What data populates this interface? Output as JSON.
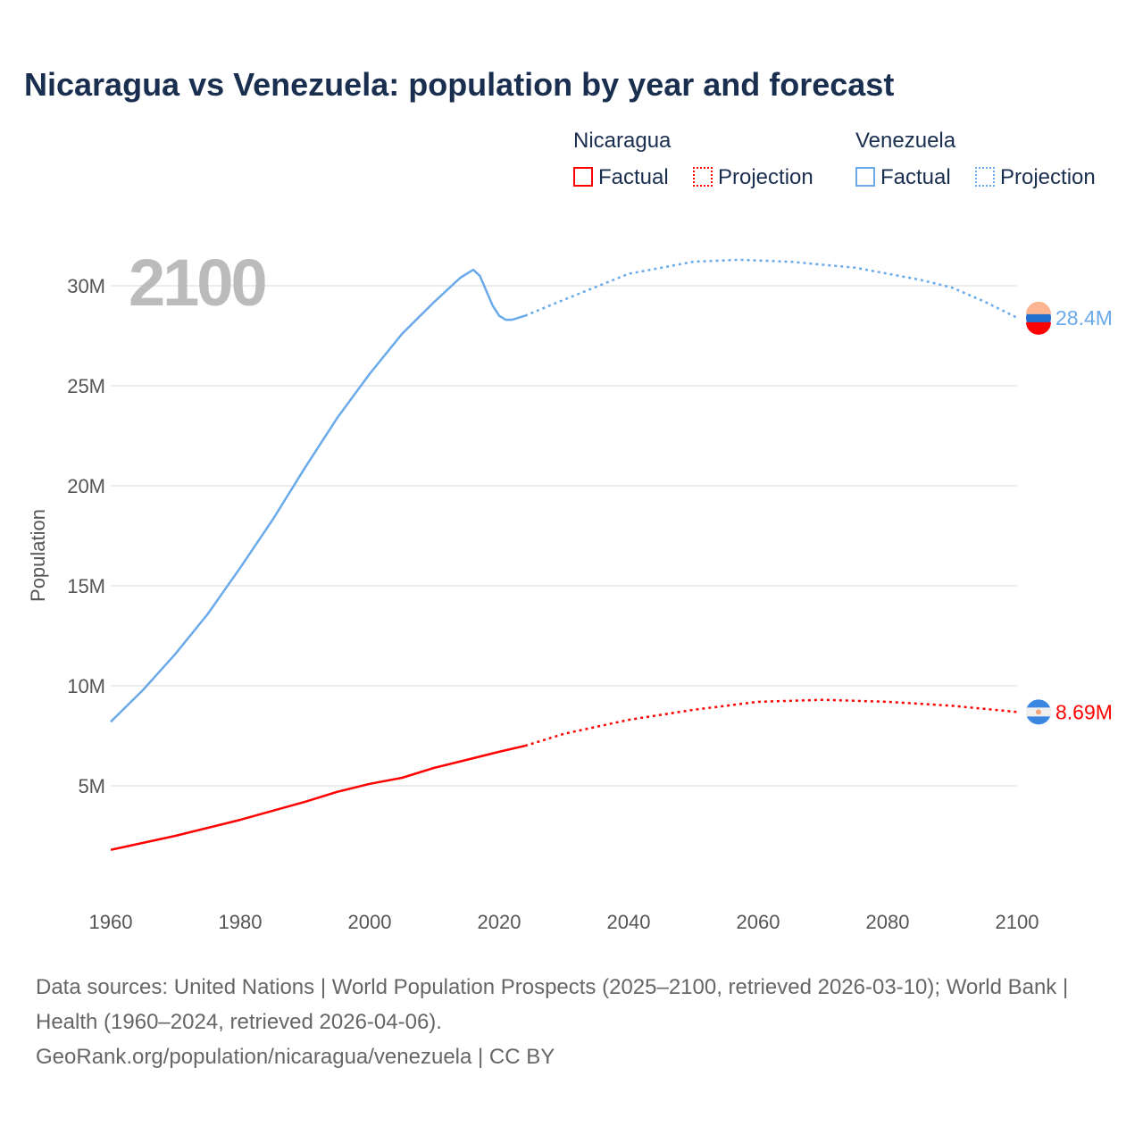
{
  "title": "Nicaragua vs Venezuela: population by year and forecast",
  "legend": {
    "groups": [
      {
        "name": "Nicaragua",
        "factual": "Factual",
        "projection": "Projection",
        "color": "#ff0000"
      },
      {
        "name": "Venezuela",
        "factual": "Factual",
        "projection": "Projection",
        "color": "#6aaaea"
      }
    ]
  },
  "year_watermark": "2100",
  "footer": {
    "sources": "Data sources: United Nations | World Population Prospects (2025–2100, retrieved 2026-03-10); World Bank | Health (1960–2024, retrieved 2026-04-06).",
    "link": "GeoRank.org/population/nicaragua/venezuela | CC BY"
  },
  "chart_data": {
    "type": "line",
    "title": "Nicaragua vs Venezuela: population by year and forecast",
    "xlabel": "",
    "ylabel": "Population",
    "xlim": [
      1960,
      2100
    ],
    "ylim": [
      0,
      32
    ],
    "xticks": [
      1960,
      1980,
      2000,
      2020,
      2040,
      2060,
      2080,
      2100
    ],
    "yticks": [
      5,
      10,
      15,
      20,
      25,
      30
    ],
    "ytick_labels": [
      "5M",
      "10M",
      "15M",
      "20M",
      "25M",
      "30M"
    ],
    "xtick_labels": [
      "1960",
      "1980",
      "2000",
      "2020",
      "2040",
      "2060",
      "2080",
      "2100"
    ],
    "grid": true,
    "legend_position": "top-right",
    "series": [
      {
        "name": "Venezuela",
        "color": "#6aaaea",
        "end_label": "28.4M",
        "factual": [
          [
            1960,
            8.2
          ],
          [
            1965,
            9.8
          ],
          [
            1970,
            11.6
          ],
          [
            1975,
            13.6
          ],
          [
            1980,
            15.9
          ],
          [
            1985,
            18.3
          ],
          [
            1990,
            20.9
          ],
          [
            1995,
            23.4
          ],
          [
            2000,
            25.6
          ],
          [
            2005,
            27.6
          ],
          [
            2010,
            29.2
          ],
          [
            2014,
            30.4
          ],
          [
            2016,
            30.8
          ],
          [
            2017,
            30.5
          ],
          [
            2019,
            29.0
          ],
          [
            2020,
            28.5
          ],
          [
            2021,
            28.3
          ],
          [
            2022,
            28.3
          ],
          [
            2024,
            28.5
          ]
        ],
        "projection": [
          [
            2024,
            28.5
          ],
          [
            2030,
            29.3
          ],
          [
            2040,
            30.6
          ],
          [
            2050,
            31.2
          ],
          [
            2057,
            31.3
          ],
          [
            2065,
            31.2
          ],
          [
            2075,
            30.9
          ],
          [
            2085,
            30.3
          ],
          [
            2090,
            29.9
          ],
          [
            2095,
            29.2
          ],
          [
            2100,
            28.4
          ]
        ]
      },
      {
        "name": "Nicaragua",
        "color": "#ff0000",
        "end_label": "8.69M",
        "factual": [
          [
            1960,
            1.8
          ],
          [
            1970,
            2.5
          ],
          [
            1980,
            3.3
          ],
          [
            1990,
            4.2
          ],
          [
            1995,
            4.7
          ],
          [
            2000,
            5.1
          ],
          [
            2005,
            5.4
          ],
          [
            2010,
            5.9
          ],
          [
            2015,
            6.3
          ],
          [
            2020,
            6.7
          ],
          [
            2024,
            7.0
          ]
        ],
        "projection": [
          [
            2024,
            7.0
          ],
          [
            2030,
            7.6
          ],
          [
            2040,
            8.3
          ],
          [
            2050,
            8.8
          ],
          [
            2060,
            9.2
          ],
          [
            2070,
            9.3
          ],
          [
            2080,
            9.2
          ],
          [
            2090,
            9.0
          ],
          [
            2100,
            8.69
          ]
        ]
      }
    ]
  }
}
